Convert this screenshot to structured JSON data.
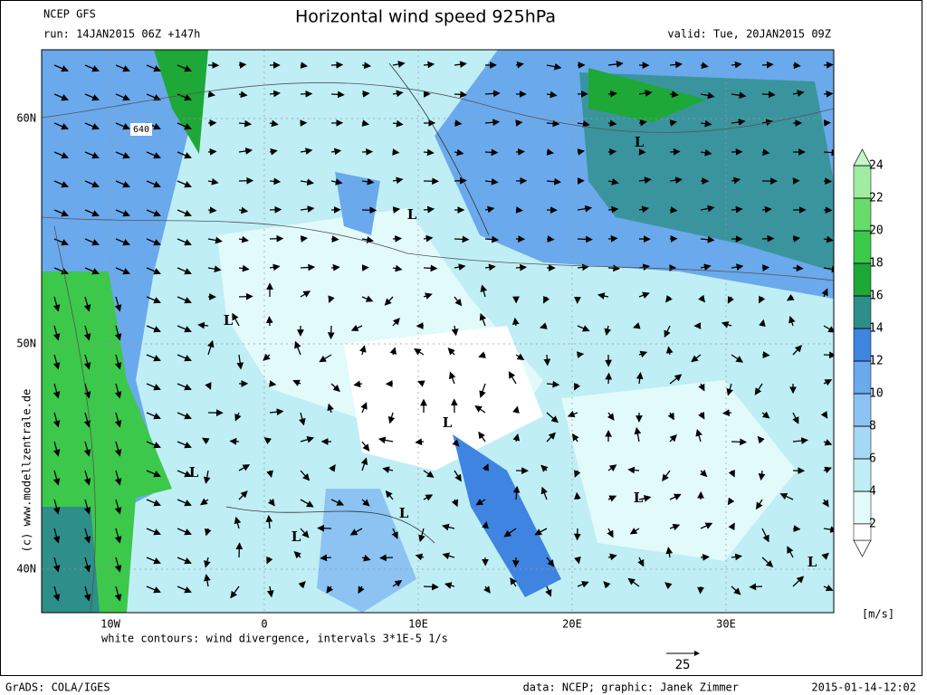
{
  "header": {
    "model": "NCEP GFS",
    "run": "run: 14JAN2015 06Z +147h",
    "title": "Horizontal wind speed 925hPa",
    "valid": "valid: Tue, 20JAN2015 09Z"
  },
  "map": {
    "lat_labels": [
      "60N",
      "50N",
      "40N"
    ],
    "lon_labels": [
      "10W",
      "0",
      "10E",
      "20E",
      "30E"
    ],
    "contour_label": "640",
    "low_marker": "L",
    "copyright": "(c) www.modellzentrale.de"
  },
  "colorbar": {
    "unit": "[m/s]",
    "ticks": [
      2,
      4,
      6,
      8,
      10,
      12,
      14,
      16,
      18,
      20,
      22,
      24
    ],
    "colors": [
      "#ffffff",
      "#e2fafa",
      "#bfeef5",
      "#a5d8f4",
      "#8cc3f2",
      "#6aa9ec",
      "#3f84e0",
      "#2e8e8a",
      "#1ea838",
      "#3cc84a",
      "#68dc6a",
      "#a0eca0",
      "#c8f5c8"
    ]
  },
  "footer": {
    "note": "white contours: wind divergence, intervals 3*1E-5 1/s",
    "vector_scale": "25",
    "software": "GrADS: COLA/IGES",
    "credit": "data: NCEP; graphic: Janek Zimmer",
    "timestamp": "2015-01-14-12:02"
  }
}
